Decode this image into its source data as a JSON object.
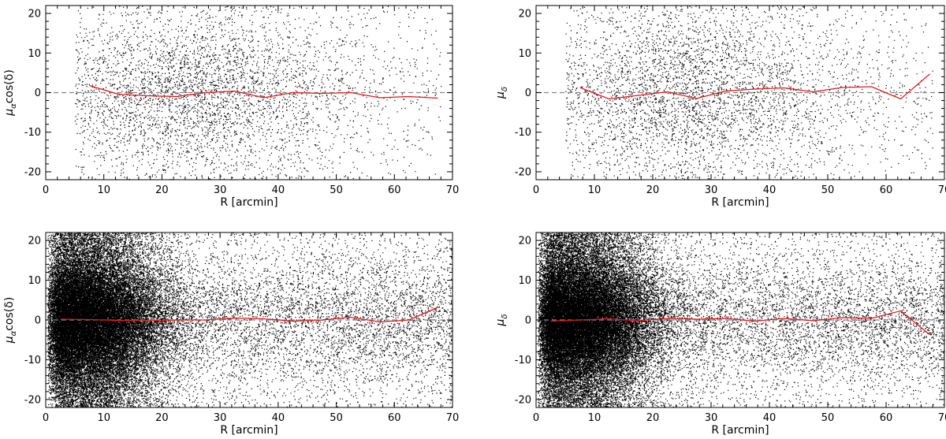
{
  "colors": {
    "points": "#000000",
    "mean_line": "#e8171b",
    "zero_line": "#888888"
  },
  "chart_data": [
    {
      "type": "scatter",
      "panel": "top-left",
      "title": "",
      "xlabel": "R [arcmin]",
      "ylabel_main": "μ",
      "ylabel_sub": "α",
      "ylabel_tail": "cos(δ)",
      "xlim": [
        0,
        70
      ],
      "ylim": [
        -22,
        22
      ],
      "xticks": [
        0,
        10,
        20,
        30,
        40,
        50,
        60,
        70
      ],
      "yticks": [
        -20,
        -10,
        0,
        10,
        20
      ],
      "reference_line_y": 0,
      "scatter": {
        "n_points": 4200,
        "r_min": 5,
        "r_max": 68,
        "r_peak": 25,
        "r_spread": 14,
        "y_sigma": 9.5,
        "y_limit": 22,
        "seed": 11
      },
      "mean_series": {
        "x": [
          7.5,
          12.5,
          17.5,
          22.5,
          27.5,
          32.5,
          37.5,
          42.5,
          47.5,
          52.5,
          57.5,
          62.5,
          67.5
        ],
        "y": [
          1.8,
          -0.4,
          -0.8,
          -1.0,
          0.0,
          0.4,
          -1.3,
          0.0,
          -0.2,
          0.0,
          -1.3,
          -1.0,
          -1.4
        ]
      }
    },
    {
      "type": "scatter",
      "panel": "top-right",
      "title": "",
      "xlabel": "R [arcmin]",
      "ylabel_main": "μ",
      "ylabel_sub": "δ",
      "ylabel_tail": "",
      "xlim": [
        0,
        70
      ],
      "ylim": [
        -22,
        22
      ],
      "xticks": [
        0,
        10,
        20,
        30,
        40,
        50,
        60,
        70
      ],
      "yticks": [
        -20,
        -10,
        0,
        10,
        20
      ],
      "reference_line_y": 0,
      "scatter": {
        "n_points": 4200,
        "r_min": 5,
        "r_max": 68,
        "r_peak": 25,
        "r_spread": 14,
        "y_sigma": 9.5,
        "y_limit": 22,
        "seed": 23
      },
      "mean_series": {
        "x": [
          7.5,
          12.5,
          17.5,
          22.5,
          27.5,
          32.5,
          37.5,
          42.5,
          47.5,
          52.5,
          57.5,
          62.5,
          67.5
        ],
        "y": [
          1.3,
          -1.6,
          -0.7,
          0.2,
          -1.5,
          0.4,
          0.9,
          1.2,
          0.2,
          1.3,
          1.5,
          -1.6,
          4.7
        ]
      }
    },
    {
      "type": "scatter",
      "panel": "bottom-left",
      "title": "",
      "xlabel": "R [arcmin]",
      "ylabel_main": "μ",
      "ylabel_sub": "α",
      "ylabel_tail": "cos(δ)",
      "xlim": [
        0,
        70
      ],
      "ylim": [
        -22,
        22
      ],
      "xticks": [
        0,
        10,
        20,
        30,
        40,
        50,
        60,
        70
      ],
      "yticks": [
        -20,
        -10,
        0,
        10,
        20
      ],
      "reference_line_y": 0,
      "scatter": {
        "n_points": 42000,
        "r_min": 0.3,
        "r_max": 70,
        "r_peak": 6,
        "r_spread": 9,
        "y_sigma": 7.5,
        "y_limit": 22,
        "seed": 37
      },
      "mean_series": {
        "x": [
          2.5,
          7.5,
          12.5,
          17.5,
          22.5,
          27.5,
          32.5,
          37.5,
          42.5,
          47.5,
          52.5,
          57.5,
          62.5,
          67.5
        ],
        "y": [
          0.2,
          0.1,
          -0.1,
          -0.2,
          0.0,
          0.0,
          0.5,
          0.3,
          -0.3,
          0.0,
          0.7,
          -0.5,
          0.0,
          3.2
        ]
      }
    },
    {
      "type": "scatter",
      "panel": "bottom-right",
      "title": "",
      "xlabel": "R [arcmin]",
      "ylabel_main": "μ",
      "ylabel_sub": "δ",
      "ylabel_tail": "",
      "xlim": [
        0,
        70
      ],
      "ylim": [
        -22,
        22
      ],
      "xticks": [
        0,
        10,
        20,
        30,
        40,
        50,
        60,
        70
      ],
      "yticks": [
        -20,
        -10,
        0,
        10,
        20
      ],
      "reference_line_y": 0,
      "scatter": {
        "n_points": 42000,
        "r_min": 0.3,
        "r_max": 70,
        "r_peak": 6,
        "r_spread": 9,
        "y_sigma": 7.5,
        "y_limit": 22,
        "seed": 53
      },
      "mean_series": {
        "x": [
          2.5,
          7.5,
          12.5,
          17.5,
          22.5,
          27.5,
          32.5,
          37.5,
          42.5,
          47.5,
          52.5,
          57.5,
          62.5,
          67.5
        ],
        "y": [
          -0.3,
          0.0,
          0.3,
          -0.2,
          0.4,
          0.2,
          0.4,
          -0.3,
          0.4,
          -0.2,
          0.6,
          0.4,
          2.3,
          -3.7
        ]
      }
    }
  ]
}
